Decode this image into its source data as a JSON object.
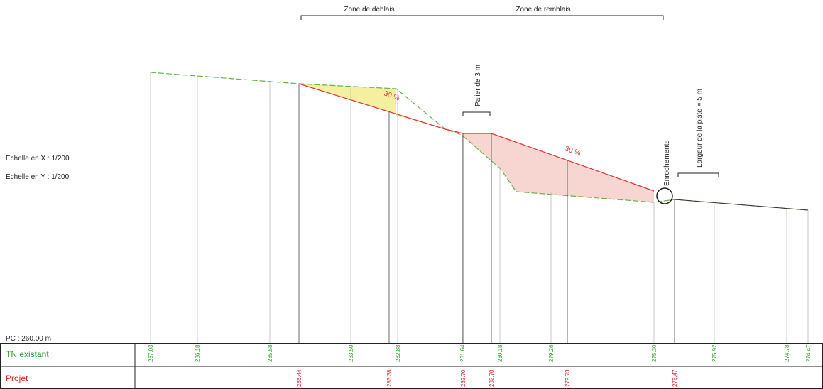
{
  "header": {
    "zone_cut": "Zone de déblais",
    "zone_fill": "Zone de remblais"
  },
  "annotations": {
    "landing": "Palier de 3 m",
    "slope_cut": "30 %",
    "slope_fill": "30 %",
    "rock": "Enrochements",
    "width": "Largeur de la piste = 5 m"
  },
  "scale": {
    "x": "Echelle en X : 1/200",
    "y": "Echelle en Y : 1/200",
    "pc": "PC : 260.00 m"
  },
  "table": {
    "rows": [
      {
        "label": "TN existant",
        "values": [
          "287.03",
          "286.18",
          "285.58",
          "283.50",
          "282.88",
          "281.64",
          "280.18",
          "279.26",
          "275.30",
          "275.92",
          "274.78",
          "274.47"
        ]
      },
      {
        "label": "Projet",
        "values": [
          "286.44",
          "283.38",
          "282.70",
          "282.70",
          "279.73",
          "276.47"
        ]
      }
    ]
  }
}
